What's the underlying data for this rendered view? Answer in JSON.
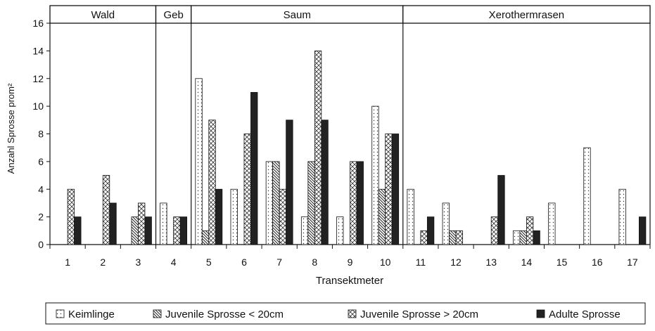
{
  "chart_data": {
    "type": "bar",
    "categories": [
      "1",
      "2",
      "3",
      "4",
      "5",
      "6",
      "7",
      "8",
      "9",
      "10",
      "11",
      "12",
      "13",
      "14",
      "15",
      "16",
      "17"
    ],
    "series": [
      {
        "name": "Keimlinge",
        "values": [
          0,
          0,
          0,
          3,
          12,
          4,
          6,
          2,
          2,
          10,
          4,
          3,
          0,
          1,
          3,
          7,
          4
        ]
      },
      {
        "name": "Juvenile Sprosse < 20cm",
        "values": [
          0,
          0,
          2,
          0,
          1,
          0,
          6,
          6,
          0,
          4,
          0,
          1,
          0,
          1,
          0,
          0,
          0
        ]
      },
      {
        "name": "Juvenile Sprosse > 20cm",
        "values": [
          4,
          5,
          3,
          2,
          9,
          8,
          4,
          14,
          6,
          8,
          1,
          1,
          2,
          2,
          0,
          0,
          0
        ]
      },
      {
        "name": "Adulte Sprosse",
        "values": [
          2,
          3,
          2,
          2,
          4,
          11,
          9,
          9,
          6,
          8,
          2,
          0,
          5,
          1,
          0,
          0,
          2
        ]
      }
    ],
    "title": "",
    "xlabel": "Transektmeter",
    "ylabel": "Anzahl Sprosse prom²",
    "ylim": [
      0,
      16
    ],
    "yticks": [
      0,
      2,
      4,
      6,
      8,
      10,
      12,
      14,
      16
    ],
    "grid": false,
    "legend": "bottom",
    "zones": [
      {
        "label": "Wald",
        "from": 1,
        "to": 3
      },
      {
        "label": "Geb",
        "from": 4,
        "to": 4
      },
      {
        "label": "Saum",
        "from": 5,
        "to": 10
      },
      {
        "label": "Xerothermrasen",
        "from": 11,
        "to": 17
      }
    ]
  }
}
